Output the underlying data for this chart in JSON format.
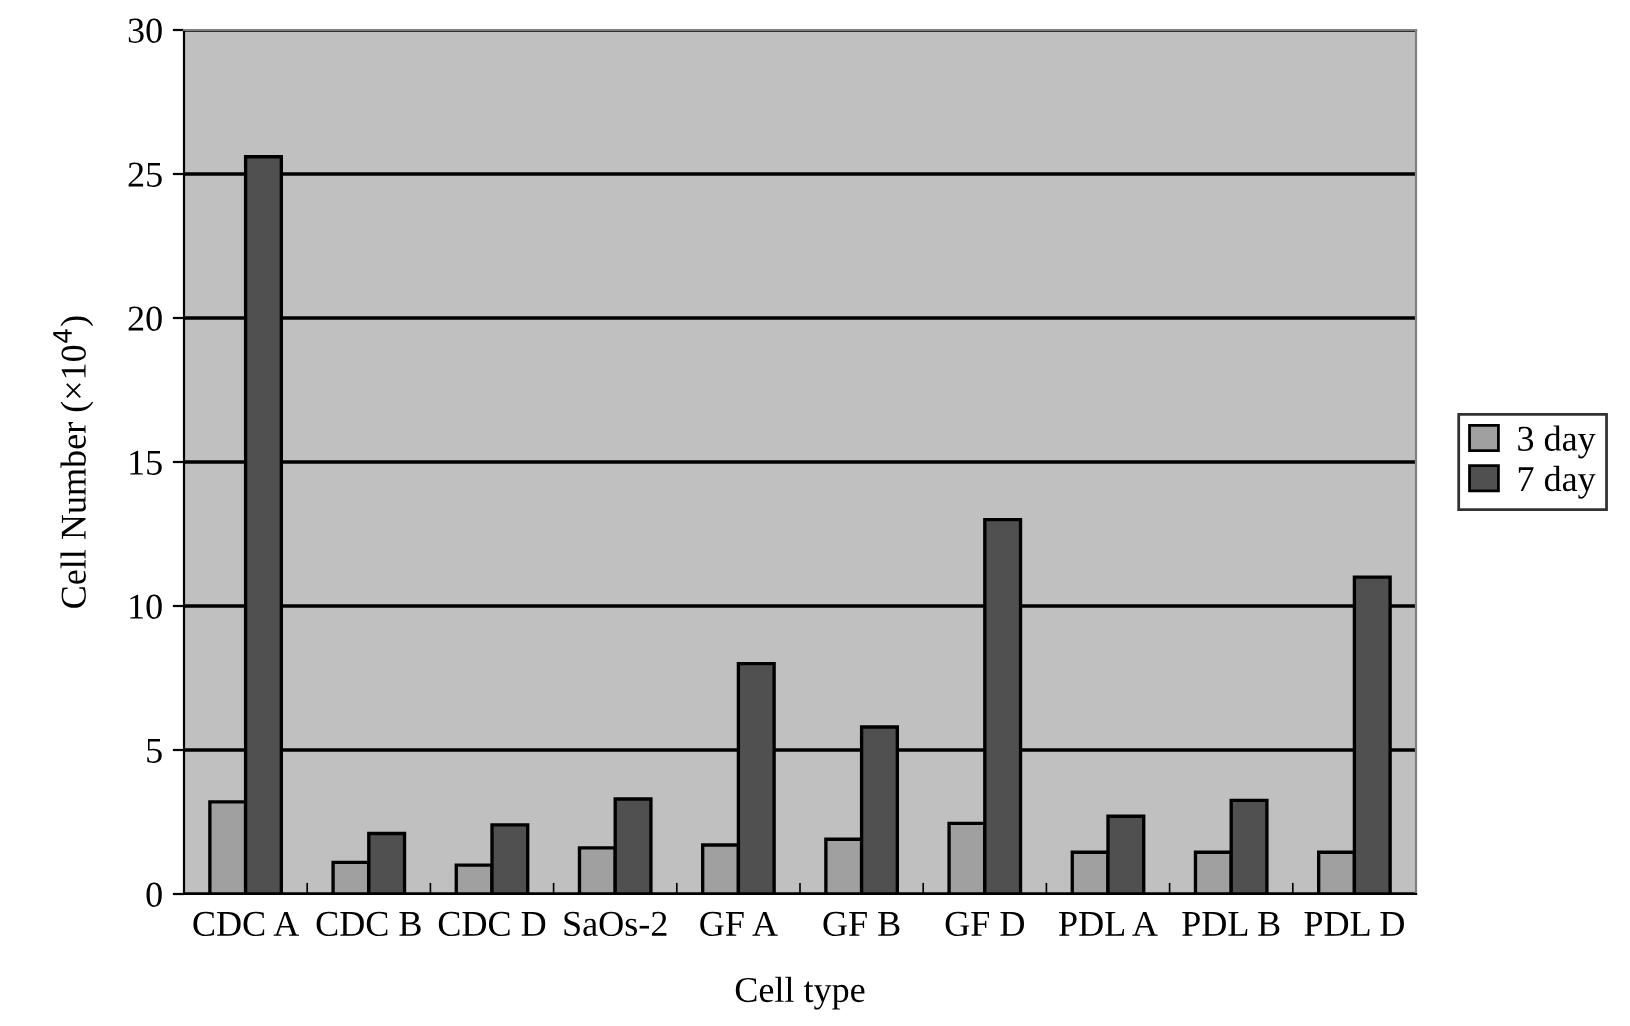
{
  "chart_data": {
    "type": "bar",
    "xlabel": "Cell type",
    "ylabel": "Cell Number (×10$^{4}$)",
    "categories": [
      "CDC A",
      "CDC B",
      "CDC D",
      "SaOs-2",
      "GF A",
      "GF B",
      "GF D",
      "PDL A",
      "PDL B",
      "PDL D"
    ],
    "series": [
      {
        "name": "3 day",
        "color": "#a0a0a0",
        "values": [
          3.2,
          1.1,
          1.0,
          1.6,
          1.7,
          1.9,
          2.45,
          1.45,
          1.45,
          1.45
        ]
      },
      {
        "name": "7 day",
        "color": "#505050",
        "values": [
          25.6,
          2.1,
          2.4,
          3.3,
          8.0,
          5.8,
          13.0,
          2.7,
          3.25,
          11.0
        ]
      }
    ],
    "ylim": [
      0,
      30
    ],
    "yticks": [
      0,
      5,
      10,
      15,
      20,
      25,
      30
    ],
    "grid": "y",
    "legend": "right"
  }
}
